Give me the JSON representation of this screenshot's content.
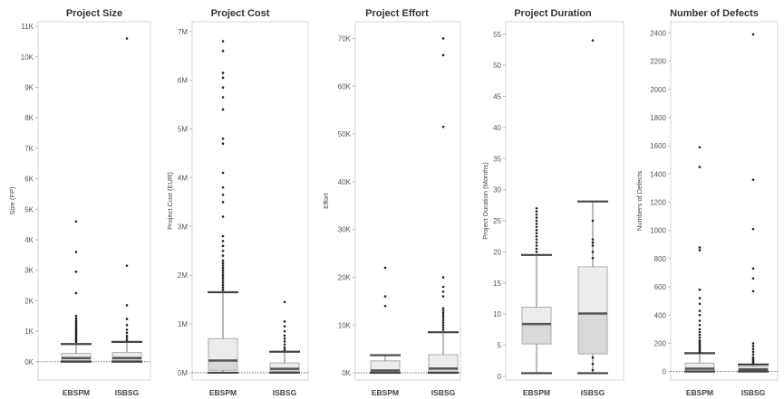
{
  "chart_data": [
    {
      "type": "box",
      "title": "Project Size",
      "ylabel": "Size (FP)",
      "categories": [
        "EBSPM",
        "ISBSG"
      ],
      "ylim": [
        -600,
        11150
      ],
      "yticks": [
        0,
        1000,
        2000,
        3000,
        4000,
        5000,
        6000,
        7000,
        8000,
        9000,
        10000,
        11000
      ],
      "yticklabels": [
        "0K",
        "1K",
        "2K",
        "3K",
        "4K",
        "5K",
        "6K",
        "7K",
        "8K",
        "9K",
        "10K",
        "11K"
      ],
      "zero_line": true,
      "boxes": [
        {
          "category": "EBSPM",
          "min": 0,
          "q1": 40,
          "median": 120,
          "q3": 270,
          "max": 580,
          "points": [
            650,
            700,
            750,
            800,
            850,
            900,
            950,
            1000,
            1050,
            1100,
            1150,
            1200,
            1250,
            1300,
            1350,
            1420,
            1500,
            2250,
            2950,
            3600,
            4600
          ]
        },
        {
          "category": "ISBSG",
          "min": 0,
          "q1": 40,
          "median": 120,
          "q3": 300,
          "max": 650,
          "points": [
            700,
            780,
            850,
            950,
            1050,
            1200,
            1400,
            1850,
            3150,
            10600
          ]
        }
      ]
    },
    {
      "type": "box",
      "title": "Project Cost",
      "ylabel": "Project Cost (EUR)",
      "categories": [
        "EBSPM",
        "ISBSG"
      ],
      "ylim": [
        -150000,
        7200000
      ],
      "yticks": [
        0,
        1000000,
        2000000,
        3000000,
        4000000,
        5000000,
        6000000,
        7000000
      ],
      "yticklabels": [
        "0M",
        "1M",
        "2M",
        "3M",
        "4M",
        "5M",
        "6M",
        "7M"
      ],
      "zero_line": true,
      "boxes": [
        {
          "category": "EBSPM",
          "min": 0,
          "q1": 50000,
          "median": 250000,
          "q3": 700000,
          "max": 1650000,
          "points": [
            1700000,
            1750000,
            1800000,
            1850000,
            1900000,
            1950000,
            2000000,
            2050000,
            2100000,
            2150000,
            2200000,
            2250000,
            2300000,
            2400000,
            2500000,
            2600000,
            2700000,
            2800000,
            3200000,
            3500000,
            3650000,
            3800000,
            4100000,
            4700000,
            4800000,
            5400000,
            5650000,
            5850000,
            6050000,
            6150000,
            6600000,
            6800000
          ]
        },
        {
          "category": "ISBSG",
          "min": 0,
          "q1": 30000,
          "median": 80000,
          "q3": 200000,
          "max": 430000,
          "points": [
            470000,
            520000,
            580000,
            640000,
            700000,
            760000,
            850000,
            950000,
            1050000,
            1450000
          ]
        }
      ]
    },
    {
      "type": "box",
      "title": "Project Effort",
      "ylabel": "Effort",
      "categories": [
        "EBSPM",
        "ISBSG"
      ],
      "ylim": [
        -1500,
        73500
      ],
      "yticks": [
        0,
        10000,
        20000,
        30000,
        40000,
        50000,
        60000,
        70000
      ],
      "yticklabels": [
        "0K",
        "10K",
        "20K",
        "30K",
        "40K",
        "50K",
        "60K",
        "70K"
      ],
      "zero_line": true,
      "boxes": [
        {
          "category": "EBSPM",
          "min": 0,
          "q1": 150,
          "median": 500,
          "q3": 2500,
          "max": 3700,
          "points": [
            14000,
            16000,
            22000
          ]
        },
        {
          "category": "ISBSG",
          "min": 0,
          "q1": 200,
          "median": 900,
          "q3": 3800,
          "max": 8500,
          "points": [
            9000,
            9500,
            10000,
            10500,
            11000,
            11500,
            12000,
            12500,
            13000,
            13500,
            16000,
            17000,
            18000,
            20000,
            51500,
            66500,
            70000
          ]
        }
      ]
    },
    {
      "type": "box",
      "title": "Project Duration",
      "ylabel": "Project Duration (Months)",
      "categories": [
        "EBSPM",
        "ISBSG"
      ],
      "ylim": [
        -0.6,
        57
      ],
      "yticks": [
        0,
        5,
        10,
        15,
        20,
        25,
        30,
        35,
        40,
        45,
        50,
        55
      ],
      "yticklabels": [
        "0",
        "5",
        "10",
        "15",
        "20",
        "25",
        "30",
        "35",
        "40",
        "45",
        "50",
        "55"
      ],
      "zero_line": false,
      "boxes": [
        {
          "category": "EBSPM",
          "min": 0.5,
          "q1": 5.2,
          "median": 8.4,
          "q3": 11.1,
          "max": 19.5,
          "points": [
            20,
            20.5,
            21,
            21.5,
            22,
            22.5,
            23,
            23.5,
            24,
            24.5,
            25,
            25.5,
            26,
            26.5,
            27
          ]
        },
        {
          "category": "ISBSG",
          "min": 0.5,
          "q1": 3.6,
          "median": 10.1,
          "q3": 17.6,
          "max": 28.1,
          "points": [
            1,
            2,
            3,
            19,
            20,
            21,
            21.5,
            22,
            25,
            54
          ]
        }
      ]
    },
    {
      "type": "box",
      "title": "Number of Defects",
      "ylabel": "Numbers of Defects",
      "categories": [
        "EBSPM",
        "ISBSG"
      ],
      "ylim": [
        -60,
        2480
      ],
      "yticks": [
        0,
        200,
        400,
        600,
        800,
        1000,
        1200,
        1400,
        1600,
        1800,
        2000,
        2200,
        2400
      ],
      "yticklabels": [
        "0",
        "200",
        "400",
        "600",
        "800",
        "1000",
        "1200",
        "1400",
        "1600",
        "1800",
        "2000",
        "2200",
        "2400"
      ],
      "zero_line": true,
      "boxes": [
        {
          "category": "EBSPM",
          "min": 0,
          "q1": 5,
          "median": 20,
          "q3": 60,
          "max": 130,
          "points": [
            140,
            150,
            160,
            170,
            180,
            190,
            200,
            210,
            220,
            240,
            260,
            280,
            300,
            330,
            360,
            400,
            430,
            480,
            520,
            580,
            860,
            880,
            1450,
            1590
          ]
        },
        {
          "category": "ISBSG",
          "min": 0,
          "q1": 5,
          "median": 15,
          "q3": 35,
          "max": 50,
          "points": [
            60,
            70,
            80,
            90,
            100,
            120,
            140,
            160,
            180,
            200,
            570,
            660,
            730,
            1010,
            1360,
            2390
          ]
        }
      ]
    }
  ]
}
